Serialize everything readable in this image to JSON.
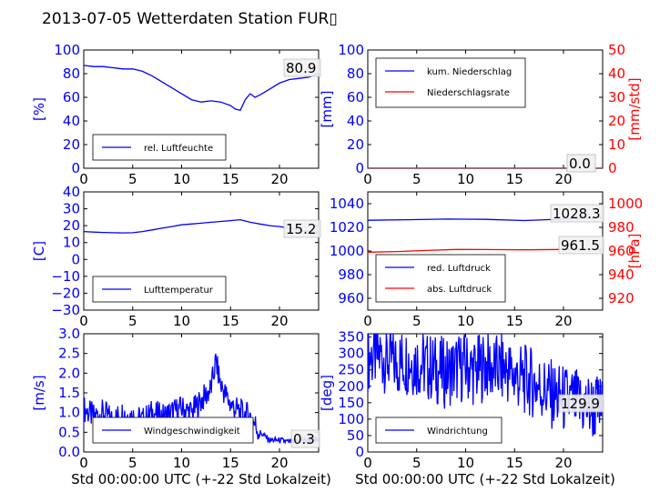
{
  "title": "2013-07-05 Wetterdaten Station FUR▯",
  "colors": {
    "primary": "#0000ff",
    "secondary": "#ff0000",
    "axis": "#000000"
  },
  "chart_data": [
    {
      "id": "humidity",
      "type": "line",
      "ylabel": "[%]",
      "ylim": [
        0,
        100
      ],
      "yticks": [
        "0",
        "20",
        "40",
        "60",
        "80",
        "100"
      ],
      "xlim": [
        0,
        24
      ],
      "xticks": [
        "0",
        "5",
        "10",
        "15",
        "20"
      ],
      "legend": {
        "placement": "lower-left",
        "entries": [
          "rel. Luftfeuchte"
        ]
      },
      "annotations": [
        "80.9"
      ],
      "series": [
        {
          "name": "rel. Luftfeuchte",
          "color": "#0000ff",
          "x": [
            0,
            1,
            2,
            3,
            4,
            5,
            6,
            7,
            8,
            9,
            10,
            11,
            12,
            13,
            14,
            15,
            15.5,
            16,
            16.5,
            17,
            17.5,
            18,
            19,
            20,
            21,
            22,
            23,
            24
          ],
          "y": [
            87,
            86,
            86,
            85,
            84,
            84,
            82,
            78,
            73,
            68,
            63,
            58,
            56,
            57,
            56,
            53,
            50,
            49,
            58,
            63,
            60,
            62,
            67,
            72,
            75,
            76,
            77,
            80
          ]
        }
      ]
    },
    {
      "id": "precipitation",
      "type": "line",
      "ylabel": "[mm]",
      "ylabel_right": "[mm/std]",
      "ylim": [
        0,
        100
      ],
      "ylim_right": [
        0,
        50
      ],
      "yticks": [
        "0",
        "20",
        "40",
        "60",
        "80",
        "100"
      ],
      "yticks_right": [
        "0",
        "10",
        "20",
        "30",
        "40",
        "50"
      ],
      "xlim": [
        0,
        24
      ],
      "xticks": [
        "0",
        "5",
        "10",
        "15",
        "20"
      ],
      "legend": {
        "placement": "upper-left",
        "entries": [
          "kum. Niederschlag",
          "Niederschlagsrate"
        ]
      },
      "annotations": [
        "0.0",
        "0.0"
      ],
      "series": [
        {
          "name": "kum. Niederschlag",
          "color": "#0000ff",
          "axis": "left",
          "x": [
            0,
            24
          ],
          "y": [
            0,
            0
          ]
        },
        {
          "name": "Niederschlagsrate",
          "color": "#ff0000",
          "axis": "right",
          "x": [
            0,
            24
          ],
          "y": [
            0,
            0
          ]
        }
      ]
    },
    {
      "id": "temperature",
      "type": "line",
      "ylabel": "[C]",
      "ylim": [
        -30,
        40
      ],
      "yticks": [
        "−30",
        "−20",
        "−10",
        "0",
        "10",
        "20",
        "30",
        "40"
      ],
      "xlim": [
        0,
        24
      ],
      "xticks": [
        "0",
        "5",
        "10",
        "15",
        "20"
      ],
      "legend": {
        "placement": "lower-left",
        "entries": [
          "Lufttemperatur"
        ]
      },
      "annotations": [
        "15.2"
      ],
      "series": [
        {
          "name": "Lufttemperatur",
          "color": "#0000ff",
          "x": [
            0,
            1,
            2,
            3,
            4,
            5,
            6,
            7,
            8,
            9,
            10,
            11,
            12,
            13,
            14,
            15,
            16,
            17,
            18,
            19,
            20,
            21,
            22,
            23,
            24
          ],
          "y": [
            16.5,
            16.2,
            16,
            15.8,
            15.7,
            15.8,
            16.5,
            17.5,
            18.5,
            19.5,
            20.5,
            21,
            21.5,
            22,
            22.5,
            23,
            23.5,
            22,
            21,
            20,
            19.5,
            18.5,
            17.5,
            16.5,
            15.5
          ]
        }
      ]
    },
    {
      "id": "pressure",
      "type": "line",
      "ylabel_right": "[hPa]",
      "ylim": [
        950,
        1050
      ],
      "ylim_right": [
        910,
        1010
      ],
      "yticks": [
        "960",
        "980",
        "1000",
        "1020",
        "1040"
      ],
      "yticks_right": [
        "920",
        "940",
        "960",
        "980",
        "1000"
      ],
      "xlim": [
        0,
        24
      ],
      "xticks": [
        "0",
        "5",
        "10",
        "15",
        "20"
      ],
      "legend": {
        "placement": "lower-left",
        "entries": [
          "red. Luftdruck",
          "abs. Luftdruck"
        ]
      },
      "annotations": [
        "1028.3",
        "961.5"
      ],
      "series": [
        {
          "name": "red. Luftdruck",
          "color": "#0000ff",
          "axis": "left",
          "x": [
            0,
            4,
            8,
            12,
            16,
            20,
            24
          ],
          "y": [
            1026,
            1026.5,
            1027,
            1026.8,
            1025.8,
            1027,
            1028.3
          ]
        },
        {
          "name": "abs. Luftdruck",
          "color": "#ff0000",
          "axis": "right",
          "x": [
            0,
            3,
            6,
            9,
            12,
            16,
            20,
            24
          ],
          "y": [
            959,
            959.5,
            960.5,
            961.3,
            961.2,
            961,
            961.3,
            961.5
          ]
        }
      ]
    },
    {
      "id": "windspeed",
      "type": "line",
      "ylabel": "[m/s]",
      "xlabel": "Std 00:00:00 UTC (+-22 Std Lokalzeit)",
      "ylim": [
        0,
        3
      ],
      "yticks": [
        "0.0",
        "0.5",
        "1.0",
        "1.5",
        "2.0",
        "2.5",
        "3.0"
      ],
      "xlim": [
        0,
        24
      ],
      "xticks": [
        "0",
        "5",
        "10",
        "15",
        "20"
      ],
      "legend": {
        "placement": "lower-left",
        "entries": [
          "Windgeschwindigkeit"
        ]
      },
      "annotations": [
        "0.3"
      ],
      "series": [
        {
          "name": "Windgeschwindigkeit",
          "color": "#0000ff",
          "x": [
            0,
            1,
            2,
            3,
            4,
            5,
            6,
            7,
            8,
            9,
            10,
            11,
            12,
            13,
            13.5,
            14,
            15,
            16,
            17,
            18,
            19,
            20,
            21,
            22,
            23,
            24
          ],
          "y": [
            1.1,
            0.9,
            1.0,
            0.8,
            1.0,
            0.9,
            0.8,
            1.0,
            0.9,
            1.0,
            1.1,
            1.0,
            1.3,
            1.6,
            2.3,
            1.7,
            1.2,
            1.0,
            0.9,
            0.5,
            0.3,
            0.3,
            0.25,
            0.3,
            0.3,
            0.3
          ]
        }
      ]
    },
    {
      "id": "winddirection",
      "type": "line",
      "ylabel": "[deg]",
      "xlabel": "Std 00:00:00 UTC (+-22 Std Lokalzeit)",
      "ylim": [
        0,
        360
      ],
      "yticks": [
        "0",
        "50",
        "100",
        "150",
        "200",
        "250",
        "300",
        "350"
      ],
      "xlim": [
        0,
        24
      ],
      "xticks": [
        "0",
        "5",
        "10",
        "15",
        "20"
      ],
      "legend": {
        "placement": "lower-left",
        "entries": [
          "Windrichtung"
        ]
      },
      "annotations": [
        "129.9"
      ],
      "series": [
        {
          "name": "Windrichtung",
          "color": "#0000ff",
          "x": [
            0,
            1,
            2,
            3,
            4,
            5,
            6,
            7,
            8,
            9,
            10,
            11,
            12,
            13,
            14,
            15,
            16,
            17,
            18,
            19,
            20,
            21,
            22,
            23,
            24
          ],
          "y": [
            290,
            295,
            285,
            270,
            280,
            275,
            260,
            250,
            240,
            255,
            260,
            245,
            265,
            250,
            255,
            230,
            220,
            210,
            190,
            170,
            160,
            150,
            140,
            135,
            130
          ]
        }
      ]
    }
  ]
}
